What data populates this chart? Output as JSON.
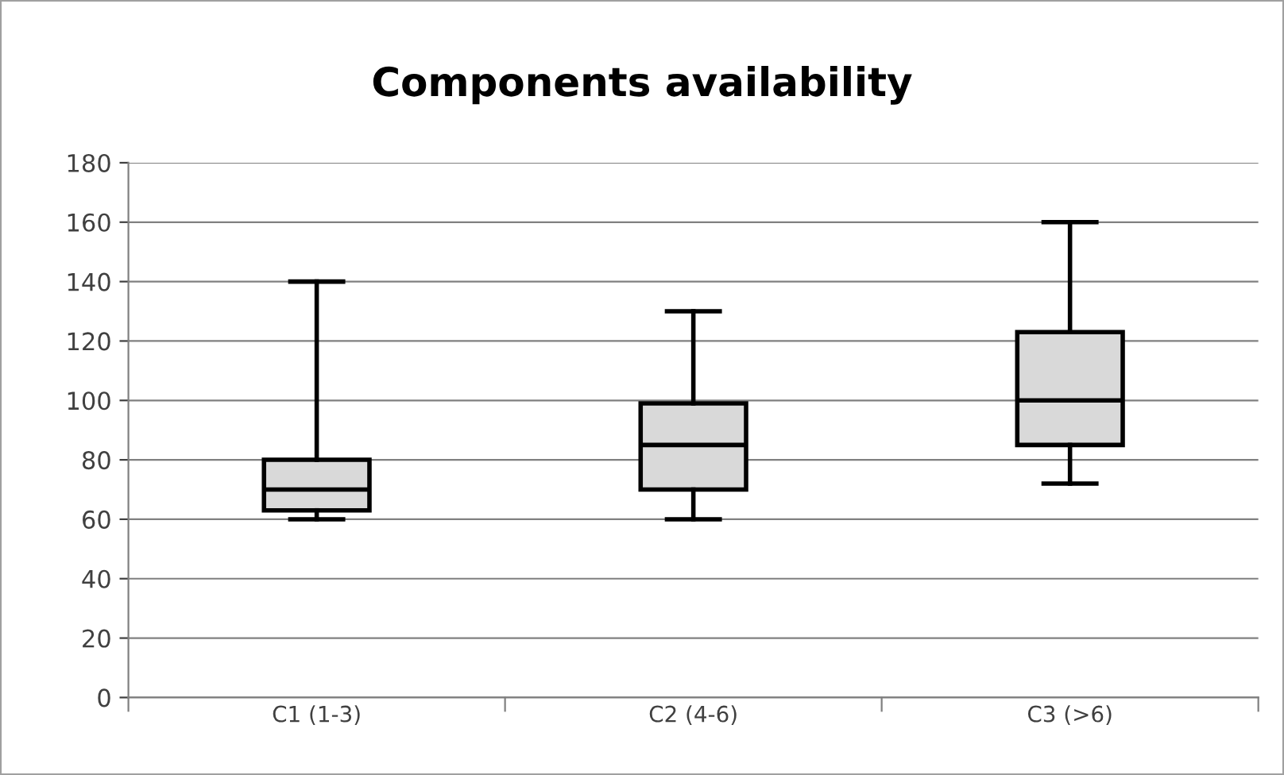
{
  "chart_data": {
    "type": "box",
    "title": "Components availability",
    "categories": [
      "C1 (1-3)",
      "C2 (4-6)",
      "C3 (>6)"
    ],
    "boxes": [
      {
        "low": 60,
        "q1": 63,
        "median": 70,
        "q3": 80,
        "high": 140
      },
      {
        "low": 60,
        "q1": 70,
        "median": 85,
        "q3": 99,
        "high": 130
      },
      {
        "low": 72,
        "q1": 85,
        "median": 100,
        "q3": 123,
        "high": 160
      }
    ],
    "color": "#d9d9d9",
    "ylim": [
      0,
      180
    ],
    "yticks": [
      0,
      20,
      40,
      60,
      80,
      100,
      120,
      140,
      160,
      180
    ],
    "grid": "y"
  }
}
